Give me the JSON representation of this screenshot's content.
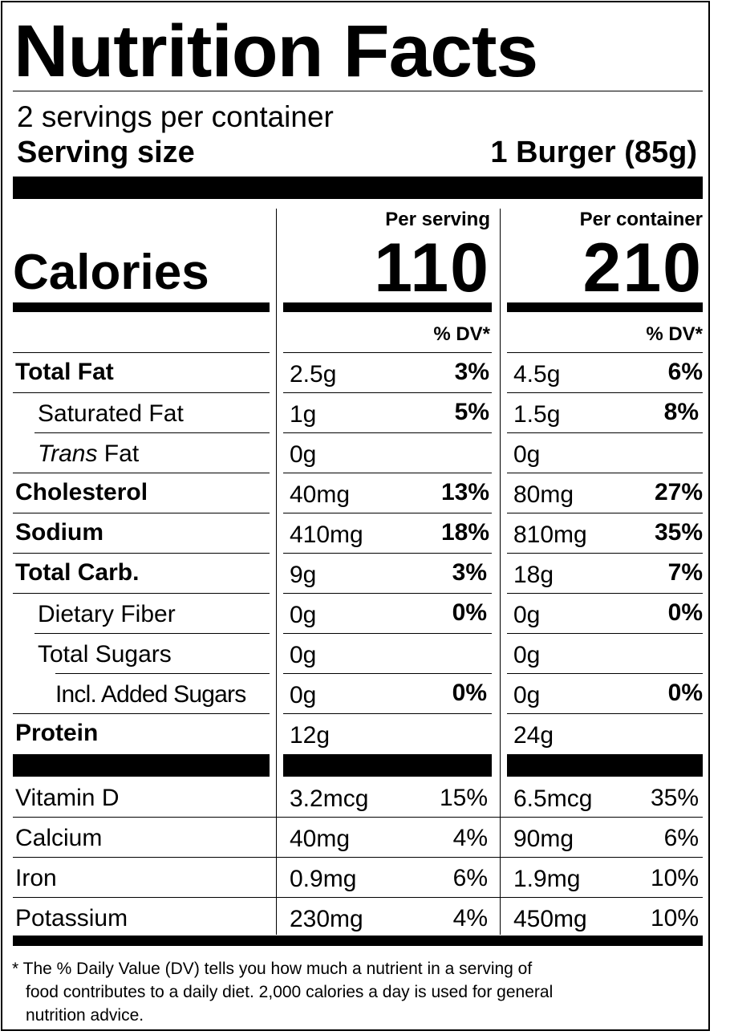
{
  "title": "Nutrition Facts",
  "servings_per_container": "2 servings per container",
  "serving_size_label": "Serving size",
  "serving_size_value": "1 Burger (85g)",
  "calories_label": "Calories",
  "per_serving_label": "Per serving",
  "per_container_label": "Per container",
  "calories_per_serving": "110",
  "calories_per_container": "210",
  "dv_header": "% DV*",
  "nutrients": [
    {
      "name": "Total Fat",
      "serving_amount": "2.5g",
      "serving_dv": "3%",
      "container_amount": "4.5g",
      "container_dv": "6%"
    },
    {
      "name": "Saturated Fat",
      "serving_amount": "1g",
      "serving_dv": "5%",
      "container_amount": "1.5g",
      "container_dv": "8%"
    },
    {
      "name_italic": "Trans",
      "name_rest": " Fat",
      "serving_amount": "0g",
      "serving_dv": "",
      "container_amount": "0g",
      "container_dv": ""
    },
    {
      "name": "Cholesterol",
      "serving_amount": "40mg",
      "serving_dv": "13%",
      "container_amount": "80mg",
      "container_dv": "27%"
    },
    {
      "name": "Sodium",
      "serving_amount": "410mg",
      "serving_dv": "18%",
      "container_amount": "810mg",
      "container_dv": "35%"
    },
    {
      "name": "Total Carb.",
      "serving_amount": "9g",
      "serving_dv": "3%",
      "container_amount": "18g",
      "container_dv": "7%"
    },
    {
      "name": "Dietary Fiber",
      "serving_amount": "0g",
      "serving_dv": "0%",
      "container_amount": "0g",
      "container_dv": "0%"
    },
    {
      "name": "Total Sugars",
      "serving_amount": "0g",
      "serving_dv": "",
      "container_amount": "0g",
      "container_dv": ""
    },
    {
      "name": "Incl. Added Sugars",
      "serving_amount": "0g",
      "serving_dv": "0%",
      "container_amount": "0g",
      "container_dv": "0%"
    },
    {
      "name": "Protein",
      "serving_amount": "12g",
      "serving_dv": "",
      "container_amount": "24g",
      "container_dv": ""
    }
  ],
  "vitamins": [
    {
      "name": "Vitamin D",
      "serving_amount": "3.2mcg",
      "serving_dv": "15%",
      "container_amount": "6.5mcg",
      "container_dv": "35%"
    },
    {
      "name": "Calcium",
      "serving_amount": "40mg",
      "serving_dv": "4%",
      "container_amount": "90mg",
      "container_dv": "6%"
    },
    {
      "name": "Iron",
      "serving_amount": "0.9mg",
      "serving_dv": "6%",
      "container_amount": "1.9mg",
      "container_dv": "10%"
    },
    {
      "name": "Potassium",
      "serving_amount": "230mg",
      "serving_dv": "4%",
      "container_amount": "450mg",
      "container_dv": "10%"
    }
  ],
  "footnote_line1": "* The % Daily Value (DV) tells you how much a nutrient in a serving of",
  "footnote_line2": "food contributes to a daily diet. 2,000 calories a day is used for general",
  "footnote_line3": "nutrition advice."
}
